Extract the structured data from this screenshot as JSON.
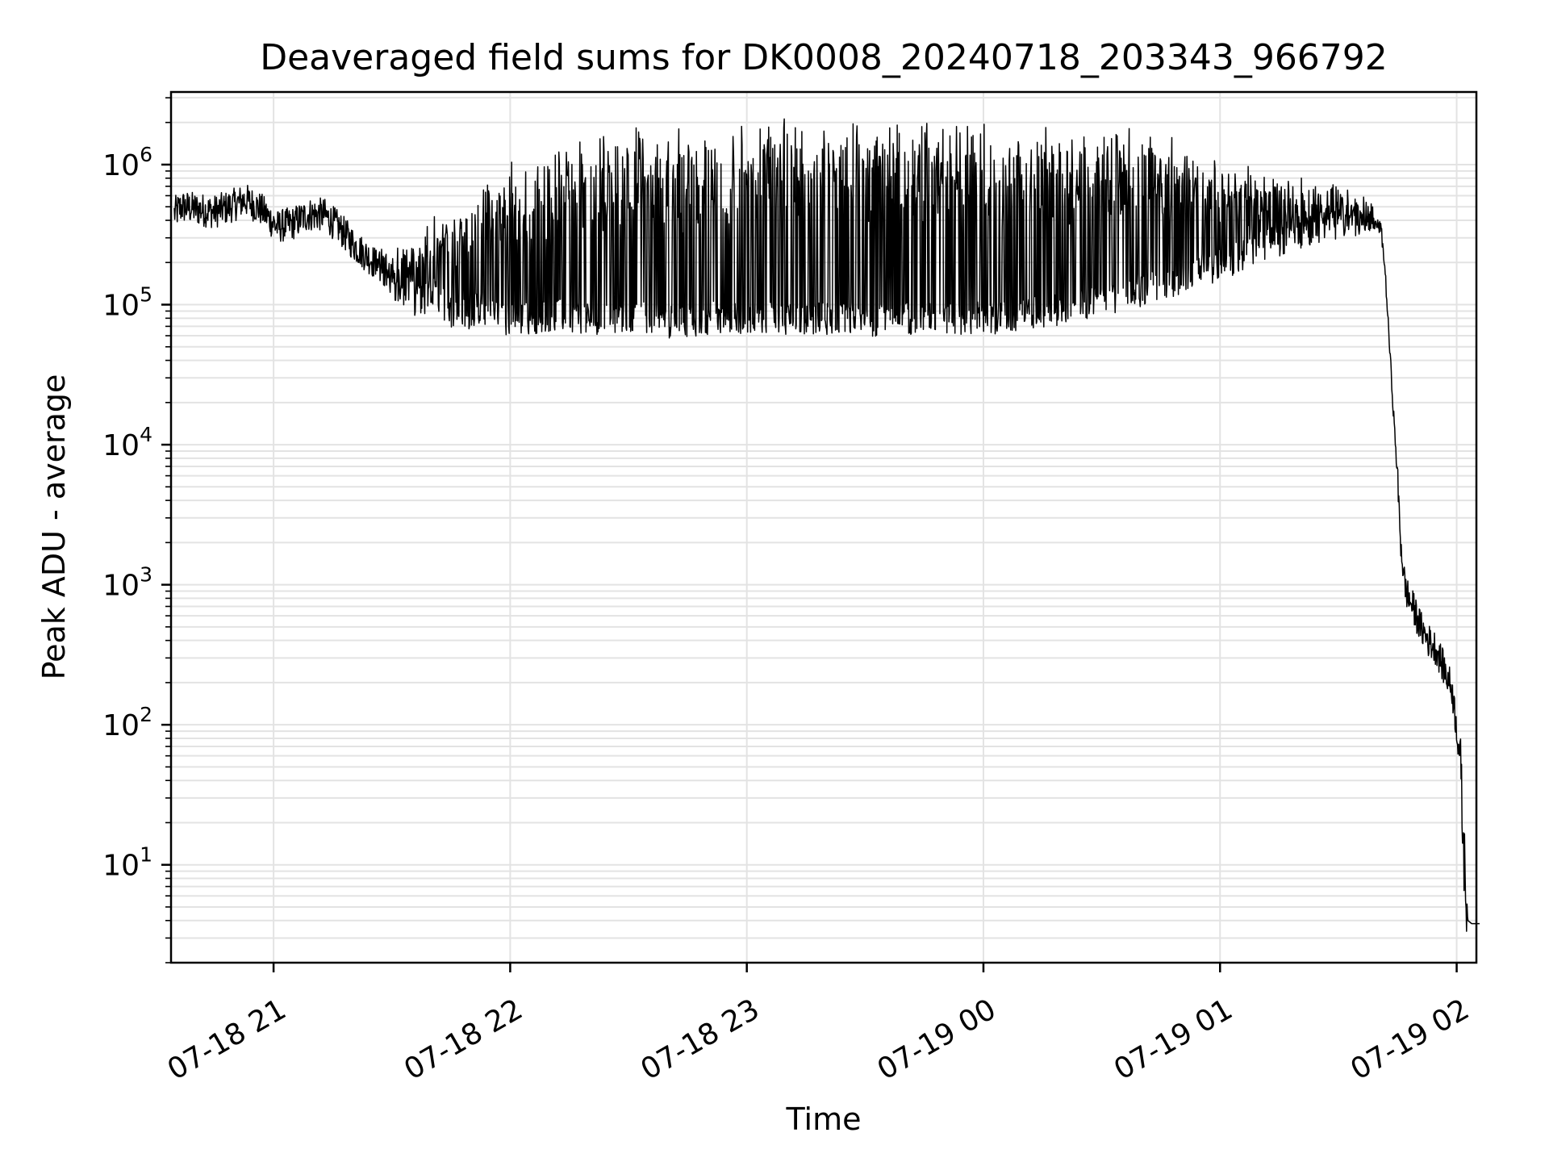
{
  "chart_data": {
    "type": "line",
    "title": "Deaveraged field sums for DK0008_20240718_203343_966792",
    "xlabel": "Time",
    "ylabel": "Peak ADU - average",
    "yscale": "log",
    "xlim": [
      "07-18 20:34",
      "07-19 02:05"
    ],
    "ylim": [
      2,
      3300000
    ],
    "grid": "major and minor",
    "legend": "none",
    "line_color": "#000000",
    "x_ticks": [
      {
        "label": "07-18 21",
        "value": "07-18 21:00"
      },
      {
        "label": "07-18 22",
        "value": "07-18 22:00"
      },
      {
        "label": "07-18 23",
        "value": "07-18 23:00"
      },
      {
        "label": "07-19 00",
        "value": "07-19 00:00"
      },
      {
        "label": "07-19 01",
        "value": "07-19 01:00"
      },
      {
        "label": "07-19 02",
        "value": "07-19 02:00"
      }
    ],
    "y_ticks": [
      {
        "base": "10",
        "exp": "1",
        "value": 10
      },
      {
        "base": "10",
        "exp": "2",
        "value": 100
      },
      {
        "base": "10",
        "exp": "3",
        "value": 1000
      },
      {
        "base": "10",
        "exp": "4",
        "value": 10000
      },
      {
        "base": "10",
        "exp": "5",
        "value": 100000
      },
      {
        "base": "10",
        "exp": "6",
        "value": 1000000
      }
    ],
    "series": [
      {
        "x": [
          "07-18 20:34",
          "07-18 20:36",
          "07-18 20:40",
          "07-18 20:44",
          "07-18 20:48",
          "07-18 20:52",
          "07-18 20:56",
          "07-18 21:00",
          "07-18 21:04",
          "07-18 21:08",
          "07-18 21:12",
          "07-18 21:16",
          "07-18 21:20",
          "07-18 21:24",
          "07-18 21:28",
          "07-18 21:32",
          "07-18 21:36",
          "07-18 21:40",
          "07-18 21:44",
          "07-18 21:48",
          "07-18 21:52",
          "07-18 21:56",
          "07-18 22:00",
          "07-18 22:10",
          "07-18 22:20",
          "07-18 22:30",
          "07-18 22:40",
          "07-18 22:50",
          "07-18 23:00",
          "07-18 23:15",
          "07-18 23:30",
          "07-18 23:45",
          "07-19 00:00",
          "07-19 00:15",
          "07-19 00:30",
          "07-19 00:45",
          "07-19 01:00",
          "07-19 01:10",
          "07-19 01:20",
          "07-19 01:28",
          "07-19 01:36",
          "07-19 01:40",
          "07-19 01:41",
          "07-19 01:42",
          "07-19 01:43",
          "07-19 01:44",
          "07-19 01:45",
          "07-19 01:46",
          "07-19 01:47",
          "07-19 01:48",
          "07-19 01:49",
          "07-19 01:50",
          "07-19 01:52",
          "07-19 01:54",
          "07-19 01:56",
          "07-19 01:58",
          "07-19 02:00",
          "07-19 02:01",
          "07-19 02:02",
          "07-19 02:03",
          "07-19 02:04",
          "07-19 02:05"
        ],
        "y": [
          450000,
          500000,
          480000,
          460000,
          500000,
          560000,
          480000,
          360000,
          380000,
          440000,
          440000,
          350000,
          260000,
          210000,
          160000,
          125000,
          105000,
          120000,
          90000,
          85000,
          95000,
          80000,
          78000,
          85000,
          80000,
          85000,
          75000,
          80000,
          82000,
          80000,
          78000,
          82000,
          80000,
          90000,
          110000,
          140000,
          200000,
          260000,
          330000,
          380000,
          420000,
          350000,
          180000,
          60000,
          20000,
          7000,
          2000,
          1000,
          800,
          700,
          600,
          500,
          400,
          350,
          250,
          180,
          60,
          12,
          4,
          3.8,
          3.8,
          3.8
        ]
      }
    ]
  }
}
